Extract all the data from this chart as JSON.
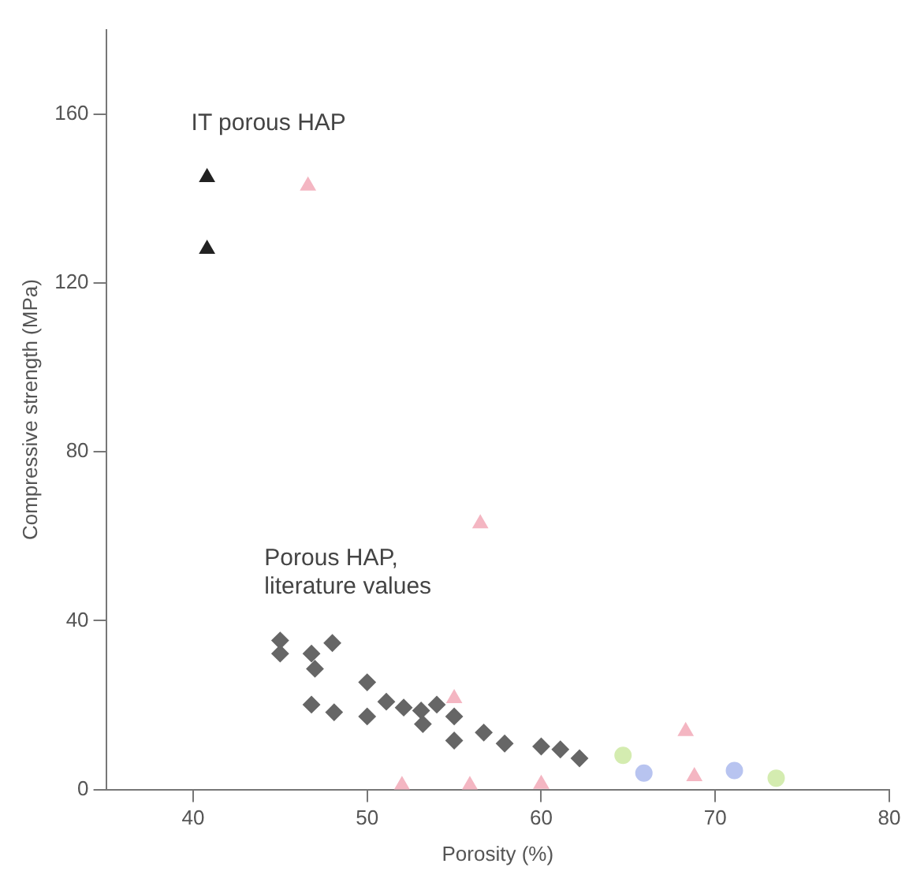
{
  "chart_data": {
    "type": "scatter",
    "xlabel": "Porosity (%)",
    "ylabel": "Compressive strength (MPa)",
    "xlim": [
      35,
      80
    ],
    "xticks": [
      40,
      50,
      60,
      70,
      80
    ],
    "ylim": [
      0,
      180
    ],
    "yticks": [
      0,
      40,
      80,
      120,
      160
    ],
    "grid": false,
    "legend": false,
    "series": [
      {
        "name": "IT porous HAP",
        "color": "#222222",
        "marker": "triangle",
        "x": [
          40.8,
          40.8
        ],
        "values": [
          145,
          128
        ]
      },
      {
        "name": "Porous HAP, literature values",
        "color": "#666666",
        "marker": "diamond",
        "x": [
          45.0,
          45.0,
          46.8,
          47.0,
          48.0,
          46.8,
          48.1,
          50.0,
          50.0,
          51.1,
          52.1,
          53.1,
          53.2,
          54.0,
          55.0,
          55.0,
          56.7,
          57.9,
          60.0,
          61.1,
          62.2
        ],
        "values": [
          35.3,
          32.2,
          32.2,
          28.6,
          34.7,
          20.1,
          18.3,
          25.4,
          17.3,
          20.8,
          19.4,
          18.7,
          15.5,
          20.1,
          17.3,
          11.6,
          13.5,
          10.9,
          10.2,
          9.5,
          7.4
        ]
      },
      {
        "color": "#f4b6c2",
        "marker": "triangle",
        "x": [
          46.6,
          56.5,
          55.0,
          68.3,
          52.0,
          55.9,
          60.0,
          68.8
        ],
        "values": [
          143,
          63,
          21.6,
          13.8,
          1,
          1,
          1.3,
          3.1
        ]
      },
      {
        "color": "#b8c4f0",
        "marker": "circle",
        "x": [
          65.9,
          71.1
        ],
        "values": [
          3.9,
          4.5
        ]
      },
      {
        "color": "#d4ecb0",
        "marker": "circle",
        "x": [
          64.7,
          73.5
        ],
        "values": [
          8.1,
          2.7
        ]
      }
    ]
  }
}
